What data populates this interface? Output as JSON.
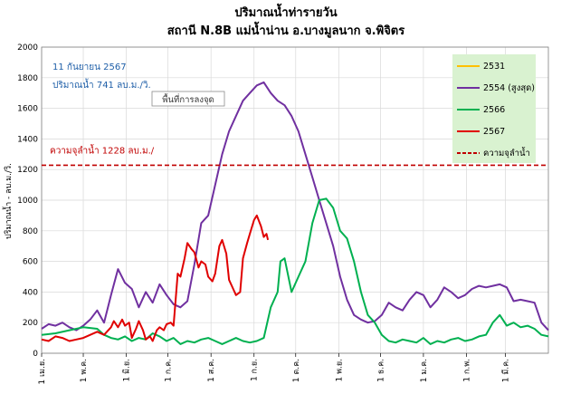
{
  "chart_data": {
    "type": "line",
    "title": "ปริมาณน้ำท่ารายวัน",
    "subtitle": "สถานี N.8B แม่น้ำน่าน อ.บางมูลนาก จ.พิจิตร",
    "ylabel": "ปริมาณน้ำ - ลบ.ม./วิ.",
    "ylim": [
      0,
      2000
    ],
    "yticks": [
      "0",
      "200",
      "400",
      "600",
      "800",
      "1000",
      "1200",
      "1400",
      "1600",
      "1800",
      "2000"
    ],
    "xlim": [
      0,
      365
    ],
    "xticks": [
      {
        "label": "1 เม.ย.",
        "x": 0
      },
      {
        "label": "1 พ.ค.",
        "x": 30
      },
      {
        "label": "1 มิ.ย.",
        "x": 61
      },
      {
        "label": "1 ก.ค.",
        "x": 91
      },
      {
        "label": "1 ส.ค.",
        "x": 122
      },
      {
        "label": "1 ก.ย.",
        "x": 153
      },
      {
        "label": "1 ต.ค.",
        "x": 183
      },
      {
        "label": "1 พ.ย.",
        "x": 214
      },
      {
        "label": "1 ธ.ค.",
        "x": 244
      },
      {
        "label": "1 ม.ค.",
        "x": 275
      },
      {
        "label": "1 ก.พ.",
        "x": 306
      },
      {
        "label": "1 มี.ค.",
        "x": 334
      }
    ],
    "grid": true,
    "legend_placement": "top-right",
    "capacity": {
      "value": 1228,
      "label": "ความจุลำน้ำ 1228 ลบ.ม./",
      "color": "#c00000"
    },
    "annotations": {
      "date": "11 กันยายน 2567",
      "flow": "ปริมาณน้ำ  741 ลบ.ม./วิ.",
      "note": "พื้นที่การลงจุด"
    },
    "series": [
      {
        "name": "2531",
        "color": "#ffc000",
        "x": [],
        "y": []
      },
      {
        "name": "2554 (สูงสุด)",
        "color": "#7030a0",
        "x": [
          0,
          5,
          10,
          15,
          20,
          25,
          30,
          35,
          40,
          45,
          50,
          55,
          60,
          65,
          70,
          75,
          80,
          85,
          90,
          95,
          100,
          105,
          110,
          115,
          120,
          125,
          130,
          135,
          140,
          145,
          150,
          155,
          160,
          165,
          170,
          175,
          180,
          185,
          190,
          195,
          200,
          205,
          210,
          215,
          220,
          225,
          230,
          235,
          240,
          245,
          250,
          255,
          260,
          265,
          270,
          275,
          280,
          285,
          290,
          295,
          300,
          305,
          310,
          315,
          320,
          325,
          330,
          335,
          340,
          345,
          350,
          355,
          360,
          365
        ],
        "y": [
          160,
          190,
          180,
          200,
          170,
          150,
          180,
          220,
          280,
          200,
          380,
          550,
          460,
          420,
          300,
          400,
          330,
          450,
          380,
          320,
          300,
          340,
          580,
          850,
          900,
          1100,
          1300,
          1450,
          1550,
          1650,
          1700,
          1750,
          1770,
          1700,
          1650,
          1620,
          1550,
          1450,
          1300,
          1150,
          1000,
          850,
          700,
          500,
          350,
          250,
          220,
          200,
          210,
          250,
          330,
          300,
          280,
          350,
          400,
          380,
          300,
          350,
          430,
          400,
          360,
          380,
          420,
          440,
          430,
          440,
          450,
          430,
          340,
          350,
          340,
          330,
          200,
          150
        ]
      },
      {
        "name": "2566",
        "color": "#00b050",
        "x": [
          0,
          10,
          20,
          30,
          40,
          45,
          50,
          55,
          60,
          65,
          70,
          75,
          80,
          85,
          90,
          95,
          100,
          105,
          110,
          115,
          120,
          125,
          130,
          135,
          140,
          145,
          150,
          155,
          160,
          165,
          170,
          172,
          175,
          180,
          185,
          190,
          195,
          200,
          205,
          210,
          215,
          220,
          225,
          230,
          235,
          240,
          245,
          250,
          255,
          260,
          265,
          270,
          275,
          280,
          285,
          290,
          295,
          300,
          305,
          310,
          315,
          320,
          325,
          330,
          335,
          340,
          345,
          350,
          355,
          360,
          365
        ],
        "y": [
          120,
          130,
          150,
          170,
          160,
          120,
          100,
          90,
          110,
          80,
          100,
          90,
          130,
          110,
          80,
          100,
          60,
          80,
          70,
          90,
          100,
          80,
          60,
          80,
          100,
          80,
          70,
          80,
          100,
          300,
          400,
          600,
          620,
          400,
          500,
          600,
          850,
          1000,
          1010,
          950,
          800,
          750,
          600,
          400,
          250,
          200,
          120,
          80,
          70,
          90,
          80,
          70,
          100,
          60,
          80,
          70,
          90,
          100,
          80,
          90,
          110,
          120,
          200,
          250,
          180,
          200,
          170,
          180,
          160,
          120,
          110
        ]
      },
      {
        "name": "2567",
        "color": "#e00000",
        "x": [
          0,
          5,
          10,
          15,
          20,
          25,
          30,
          35,
          40,
          45,
          50,
          52,
          55,
          58,
          60,
          63,
          65,
          68,
          70,
          73,
          75,
          78,
          80,
          83,
          85,
          88,
          90,
          93,
          95,
          98,
          100,
          103,
          105,
          108,
          110,
          113,
          115,
          118,
          120,
          123,
          125,
          128,
          130,
          133,
          135,
          138,
          140,
          143,
          145,
          148,
          150,
          153,
          155,
          158,
          160,
          162,
          163
        ],
        "y": [
          90,
          80,
          110,
          100,
          80,
          90,
          100,
          120,
          140,
          120,
          170,
          210,
          170,
          220,
          180,
          200,
          100,
          160,
          210,
          150,
          90,
          110,
          80,
          150,
          170,
          150,
          190,
          200,
          180,
          520,
          500,
          620,
          720,
          680,
          660,
          560,
          600,
          580,
          500,
          470,
          520,
          700,
          740,
          650,
          480,
          420,
          380,
          400,
          620,
          720,
          780,
          870,
          900,
          830,
          760,
          780,
          740
        ]
      }
    ]
  }
}
